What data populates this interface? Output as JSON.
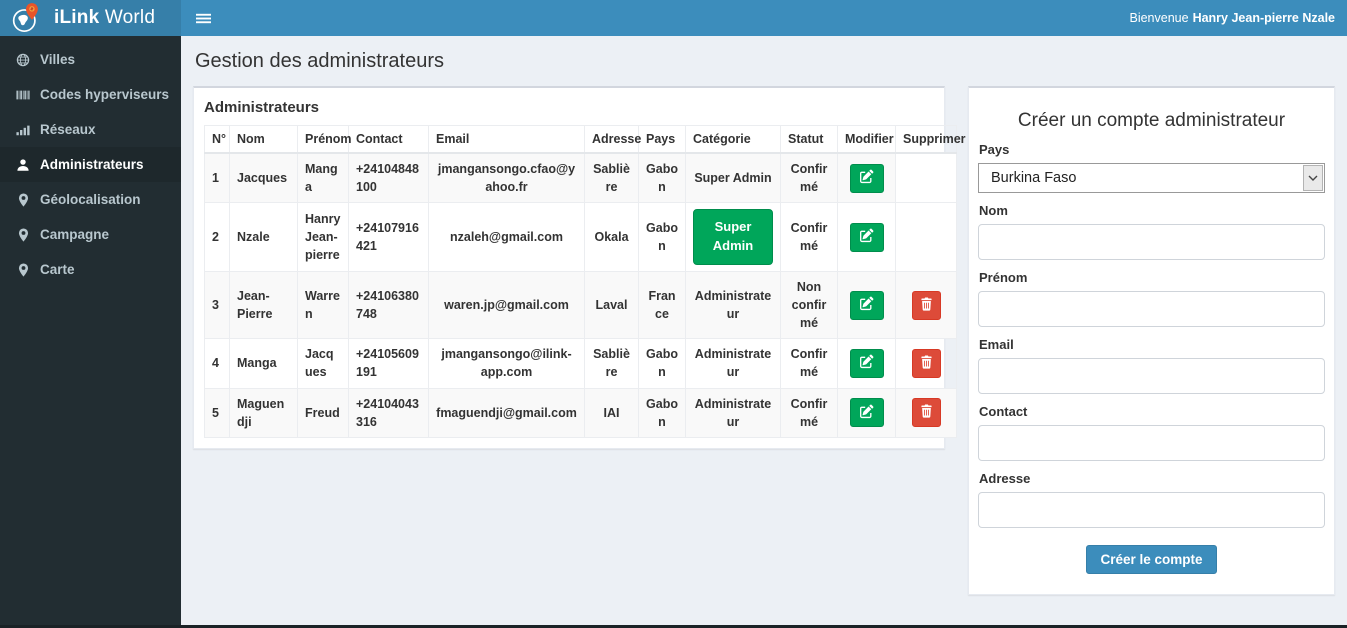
{
  "header": {
    "brand_bold": "iLink",
    "brand_light": "World",
    "menu_icon": "hamburger-icon",
    "logo_icon": "globe-pin-logo-icon",
    "welcome_prefix": "Bienvenue",
    "welcome_user": "Hanry Jean-pierre Nzale"
  },
  "sidebar": {
    "items": [
      {
        "label": "Villes",
        "icon": "globe-icon",
        "active": false
      },
      {
        "label": "Codes hyperviseurs",
        "icon": "barcode-icon",
        "active": false
      },
      {
        "label": "Réseaux",
        "icon": "signal-bars-icon",
        "active": false
      },
      {
        "label": "Administrateurs",
        "icon": "user-icon",
        "active": true
      },
      {
        "label": "Géolocalisation",
        "icon": "map-marker-icon",
        "active": false
      },
      {
        "label": "Campagne",
        "icon": "map-marker-icon",
        "active": false
      },
      {
        "label": "Carte",
        "icon": "map-marker-icon",
        "active": false
      }
    ]
  },
  "page": {
    "title": "Gestion des administrateurs"
  },
  "admin_table": {
    "panel_title": "Administrateurs",
    "columns": [
      "N°",
      "Nom",
      "Prénom",
      "Contact",
      "Email",
      "Adresse",
      "Pays",
      "Catégorie",
      "Statut",
      "Modifier",
      "Supprimer"
    ],
    "action_icons": {
      "edit": "edit-icon",
      "delete": "trash-icon"
    },
    "rows": [
      {
        "num": "1",
        "nom": "Jacques",
        "prenom": "Manga",
        "contact": "+24104848100",
        "email": "jmangansongo.cfao@yahoo.fr",
        "adresse": "Sablière",
        "pays": "Gabon",
        "categorie": "Super Admin",
        "categorie_style": "text",
        "statut": "Confirmé",
        "can_delete": false
      },
      {
        "num": "2",
        "nom": "Nzale",
        "prenom": "Hanry Jean-pierre",
        "contact": "+24107916421",
        "email": "nzaleh@gmail.com",
        "adresse": "Okala",
        "pays": "Gabon",
        "categorie": "Super Admin",
        "categorie_style": "button",
        "statut": "Confirmé",
        "can_delete": false
      },
      {
        "num": "3",
        "nom": "Jean-Pierre",
        "prenom": "Warren",
        "contact": "+24106380748",
        "email": "waren.jp@gmail.com",
        "adresse": "Laval",
        "pays": "France",
        "categorie": "Administrateur",
        "categorie_style": "text",
        "statut": "Non confirmé",
        "can_delete": true
      },
      {
        "num": "4",
        "nom": "Manga",
        "prenom": "Jacques",
        "contact": "+24105609191",
        "email": "jmangansongo@ilink-app.com",
        "adresse": "Sablière",
        "pays": "Gabon",
        "categorie": "Administrateur",
        "categorie_style": "text",
        "statut": "Confirmé",
        "can_delete": true
      },
      {
        "num": "5",
        "nom": "Maguendji",
        "prenom": "Freud",
        "contact": "+24104043316",
        "email": "fmaguendji@gmail.com",
        "adresse": "IAI",
        "pays": "Gabon",
        "categorie": "Administrateur",
        "categorie_style": "text",
        "statut": "Confirmé",
        "can_delete": true
      }
    ]
  },
  "create_form": {
    "title": "Créer un compte administrateur",
    "fields": [
      {
        "name": "pays-select",
        "label": "Pays",
        "type": "select",
        "value": "Burkina Faso",
        "arrow_icon": "chevron-down-icon"
      },
      {
        "name": "nom-input",
        "label": "Nom",
        "type": "text",
        "value": ""
      },
      {
        "name": "prenom-input",
        "label": "Prénom",
        "type": "text",
        "value": ""
      },
      {
        "name": "email-input",
        "label": "Email",
        "type": "text",
        "value": ""
      },
      {
        "name": "contact-input",
        "label": "Contact",
        "type": "text",
        "value": ""
      },
      {
        "name": "adresse-input",
        "label": "Adresse",
        "type": "text",
        "value": ""
      }
    ],
    "submit_label": "Créer le compte"
  },
  "colors": {
    "header_blue": "#3c8dbc",
    "brand_blue": "#367fa9",
    "sidebar_dark": "#222d32",
    "sidebar_active": "#1e282c",
    "success_green": "#00a65a",
    "danger_red": "#dd4b39",
    "content_bg": "#ecf0f5",
    "stripe": "#f9f9f9",
    "pin_orange": "#e8552a"
  }
}
